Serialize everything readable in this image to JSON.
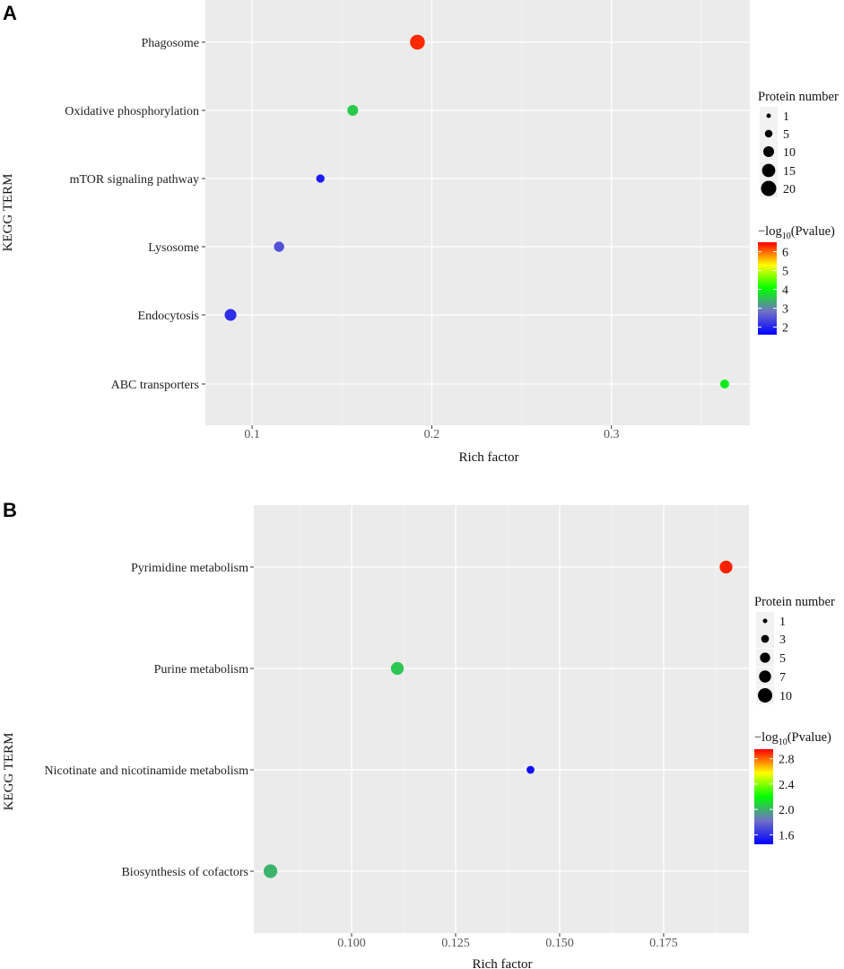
{
  "chart_data": [
    {
      "panel": "A",
      "type": "scatter",
      "xlabel": "Rich factor",
      "ylabel": "KEGG TERM",
      "xlim": [
        0.074,
        0.377
      ],
      "x_ticks": [
        {
          "value": 0.1,
          "label": "0.1"
        },
        {
          "value": 0.2,
          "label": "0.2"
        },
        {
          "value": 0.3,
          "label": "0.3"
        }
      ],
      "categories": [
        "Phagosome",
        "Oxidative phosphorylation",
        "mTOR signaling pathway",
        "Lysosome",
        "Endocytosis",
        "ABC transporters"
      ],
      "points": [
        {
          "term": "Phagosome",
          "rich_factor": 0.192,
          "protein_number": 19,
          "neg_log10_p": 6.3
        },
        {
          "term": "Oxidative phosphorylation",
          "rich_factor": 0.156,
          "protein_number": 10,
          "neg_log10_p": 3.6
        },
        {
          "term": "mTOR signaling pathway",
          "rich_factor": 0.138,
          "protein_number": 6,
          "neg_log10_p": 1.9
        },
        {
          "term": "Lysosome",
          "rich_factor": 0.115,
          "protein_number": 9,
          "neg_log10_p": 2.5
        },
        {
          "term": "Endocytosis",
          "rich_factor": 0.088,
          "protein_number": 12,
          "neg_log10_p": 2.1
        },
        {
          "term": "ABC transporters",
          "rich_factor": 0.363,
          "protein_number": 7,
          "neg_log10_p": 3.9
        }
      ],
      "size_legend": {
        "title": "Protein number",
        "entries": [
          {
            "value": 1,
            "label": "1"
          },
          {
            "value": 5,
            "label": "5"
          },
          {
            "value": 10,
            "label": "10"
          },
          {
            "value": 15,
            "label": "15"
          },
          {
            "value": 20,
            "label": "20"
          }
        ]
      },
      "color_legend": {
        "title_prefix": "−log",
        "title_sub": "10",
        "title_suffix": "(Pvalue)",
        "range": [
          1.6,
          6.5
        ],
        "ticks": [
          {
            "value": 2,
            "label": "2"
          },
          {
            "value": 3,
            "label": "3"
          },
          {
            "value": 4,
            "label": "4"
          },
          {
            "value": 5,
            "label": "5"
          },
          {
            "value": 6,
            "label": "6"
          }
        ],
        "colors": [
          "#0000ff",
          "#7070c8",
          "#00ff00",
          "#ffff00",
          "#ff0000"
        ]
      }
    },
    {
      "panel": "B",
      "type": "scatter",
      "xlabel": "Rich factor",
      "ylabel": "KEGG TERM",
      "xlim": [
        0.0765,
        0.1955
      ],
      "x_ticks": [
        {
          "value": 0.1,
          "label": "0.100"
        },
        {
          "value": 0.125,
          "label": "0.125"
        },
        {
          "value": 0.15,
          "label": "0.150"
        },
        {
          "value": 0.175,
          "label": "0.175"
        }
      ],
      "categories": [
        "Pyrimidine metabolism",
        "Purine metabolism",
        "Nicotinate and nicotinamide metabolism",
        "Biosynthesis of cofactors"
      ],
      "points": [
        {
          "term": "Pyrimidine metabolism",
          "rich_factor": 0.19,
          "protein_number": 8,
          "neg_log10_p": 2.9
        },
        {
          "term": "Purine metabolism",
          "rich_factor": 0.111,
          "protein_number": 8,
          "neg_log10_p": 2.05
        },
        {
          "term": "Nicotinate and nicotinamide metabolism",
          "rich_factor": 0.143,
          "protein_number": 3,
          "neg_log10_p": 1.5
        },
        {
          "term": "Biosynthesis of cofactors",
          "rich_factor": 0.0805,
          "protein_number": 9,
          "neg_log10_p": 2.0
        }
      ],
      "size_legend": {
        "title": "Protein number",
        "entries": [
          {
            "value": 1,
            "label": "1"
          },
          {
            "value": 3,
            "label": "3"
          },
          {
            "value": 5,
            "label": "5"
          },
          {
            "value": 7,
            "label": "7"
          },
          {
            "value": 10,
            "label": "10"
          }
        ]
      },
      "color_legend": {
        "title_prefix": "−log",
        "title_sub": "10",
        "title_suffix": "(Pvalue)",
        "range": [
          1.45,
          2.95
        ],
        "ticks": [
          {
            "value": 1.6,
            "label": "1.6"
          },
          {
            "value": 2.0,
            "label": "2.0"
          },
          {
            "value": 2.4,
            "label": "2.4"
          },
          {
            "value": 2.8,
            "label": "2.8"
          }
        ],
        "colors": [
          "#0000ff",
          "#7070c8",
          "#00ff00",
          "#ffff00",
          "#ff0000"
        ]
      }
    }
  ]
}
